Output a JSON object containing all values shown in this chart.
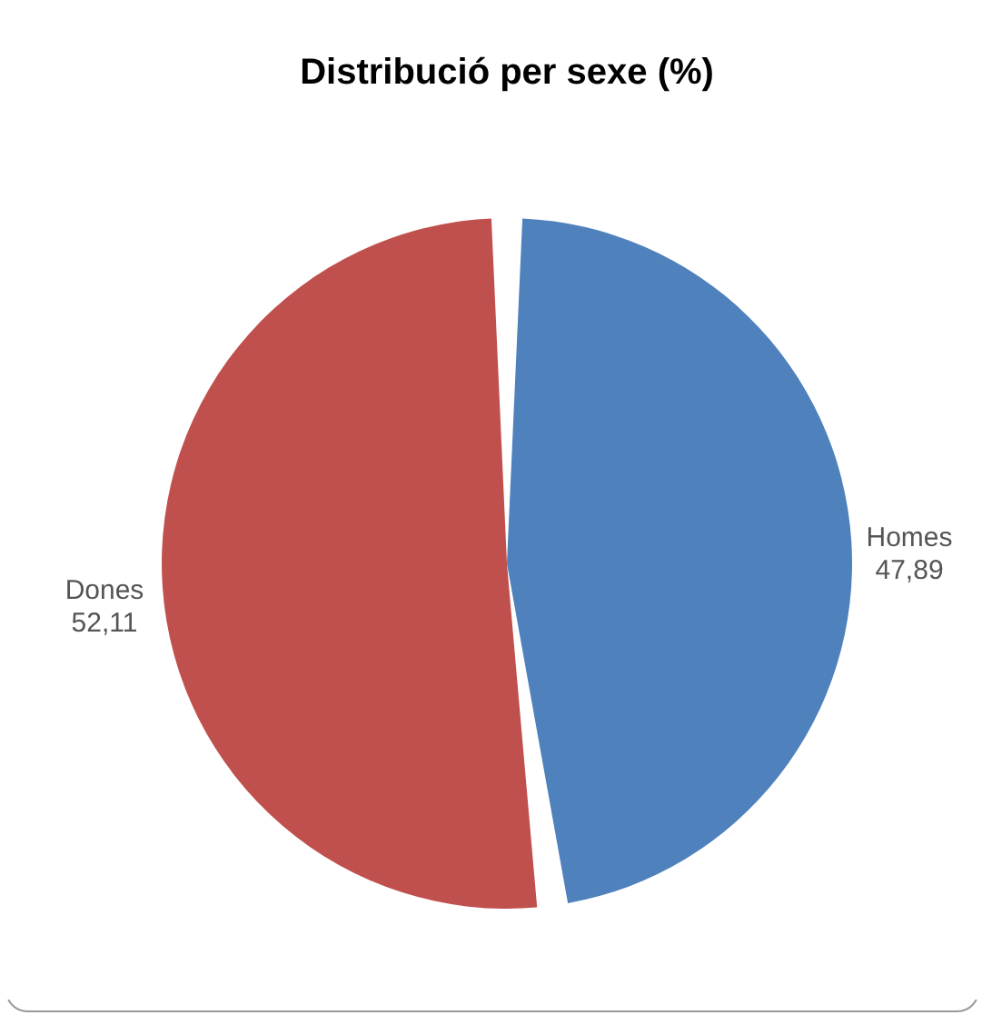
{
  "chart_data": {
    "type": "pie",
    "title": "Distribució per sexe (%)",
    "categories": [
      "Homes",
      "Dones"
    ],
    "values": [
      47.89,
      52.11
    ],
    "colors": [
      "#4f81bd",
      "#c0504d"
    ],
    "value_labels": [
      "47,89",
      "52,11"
    ],
    "legend": false
  }
}
